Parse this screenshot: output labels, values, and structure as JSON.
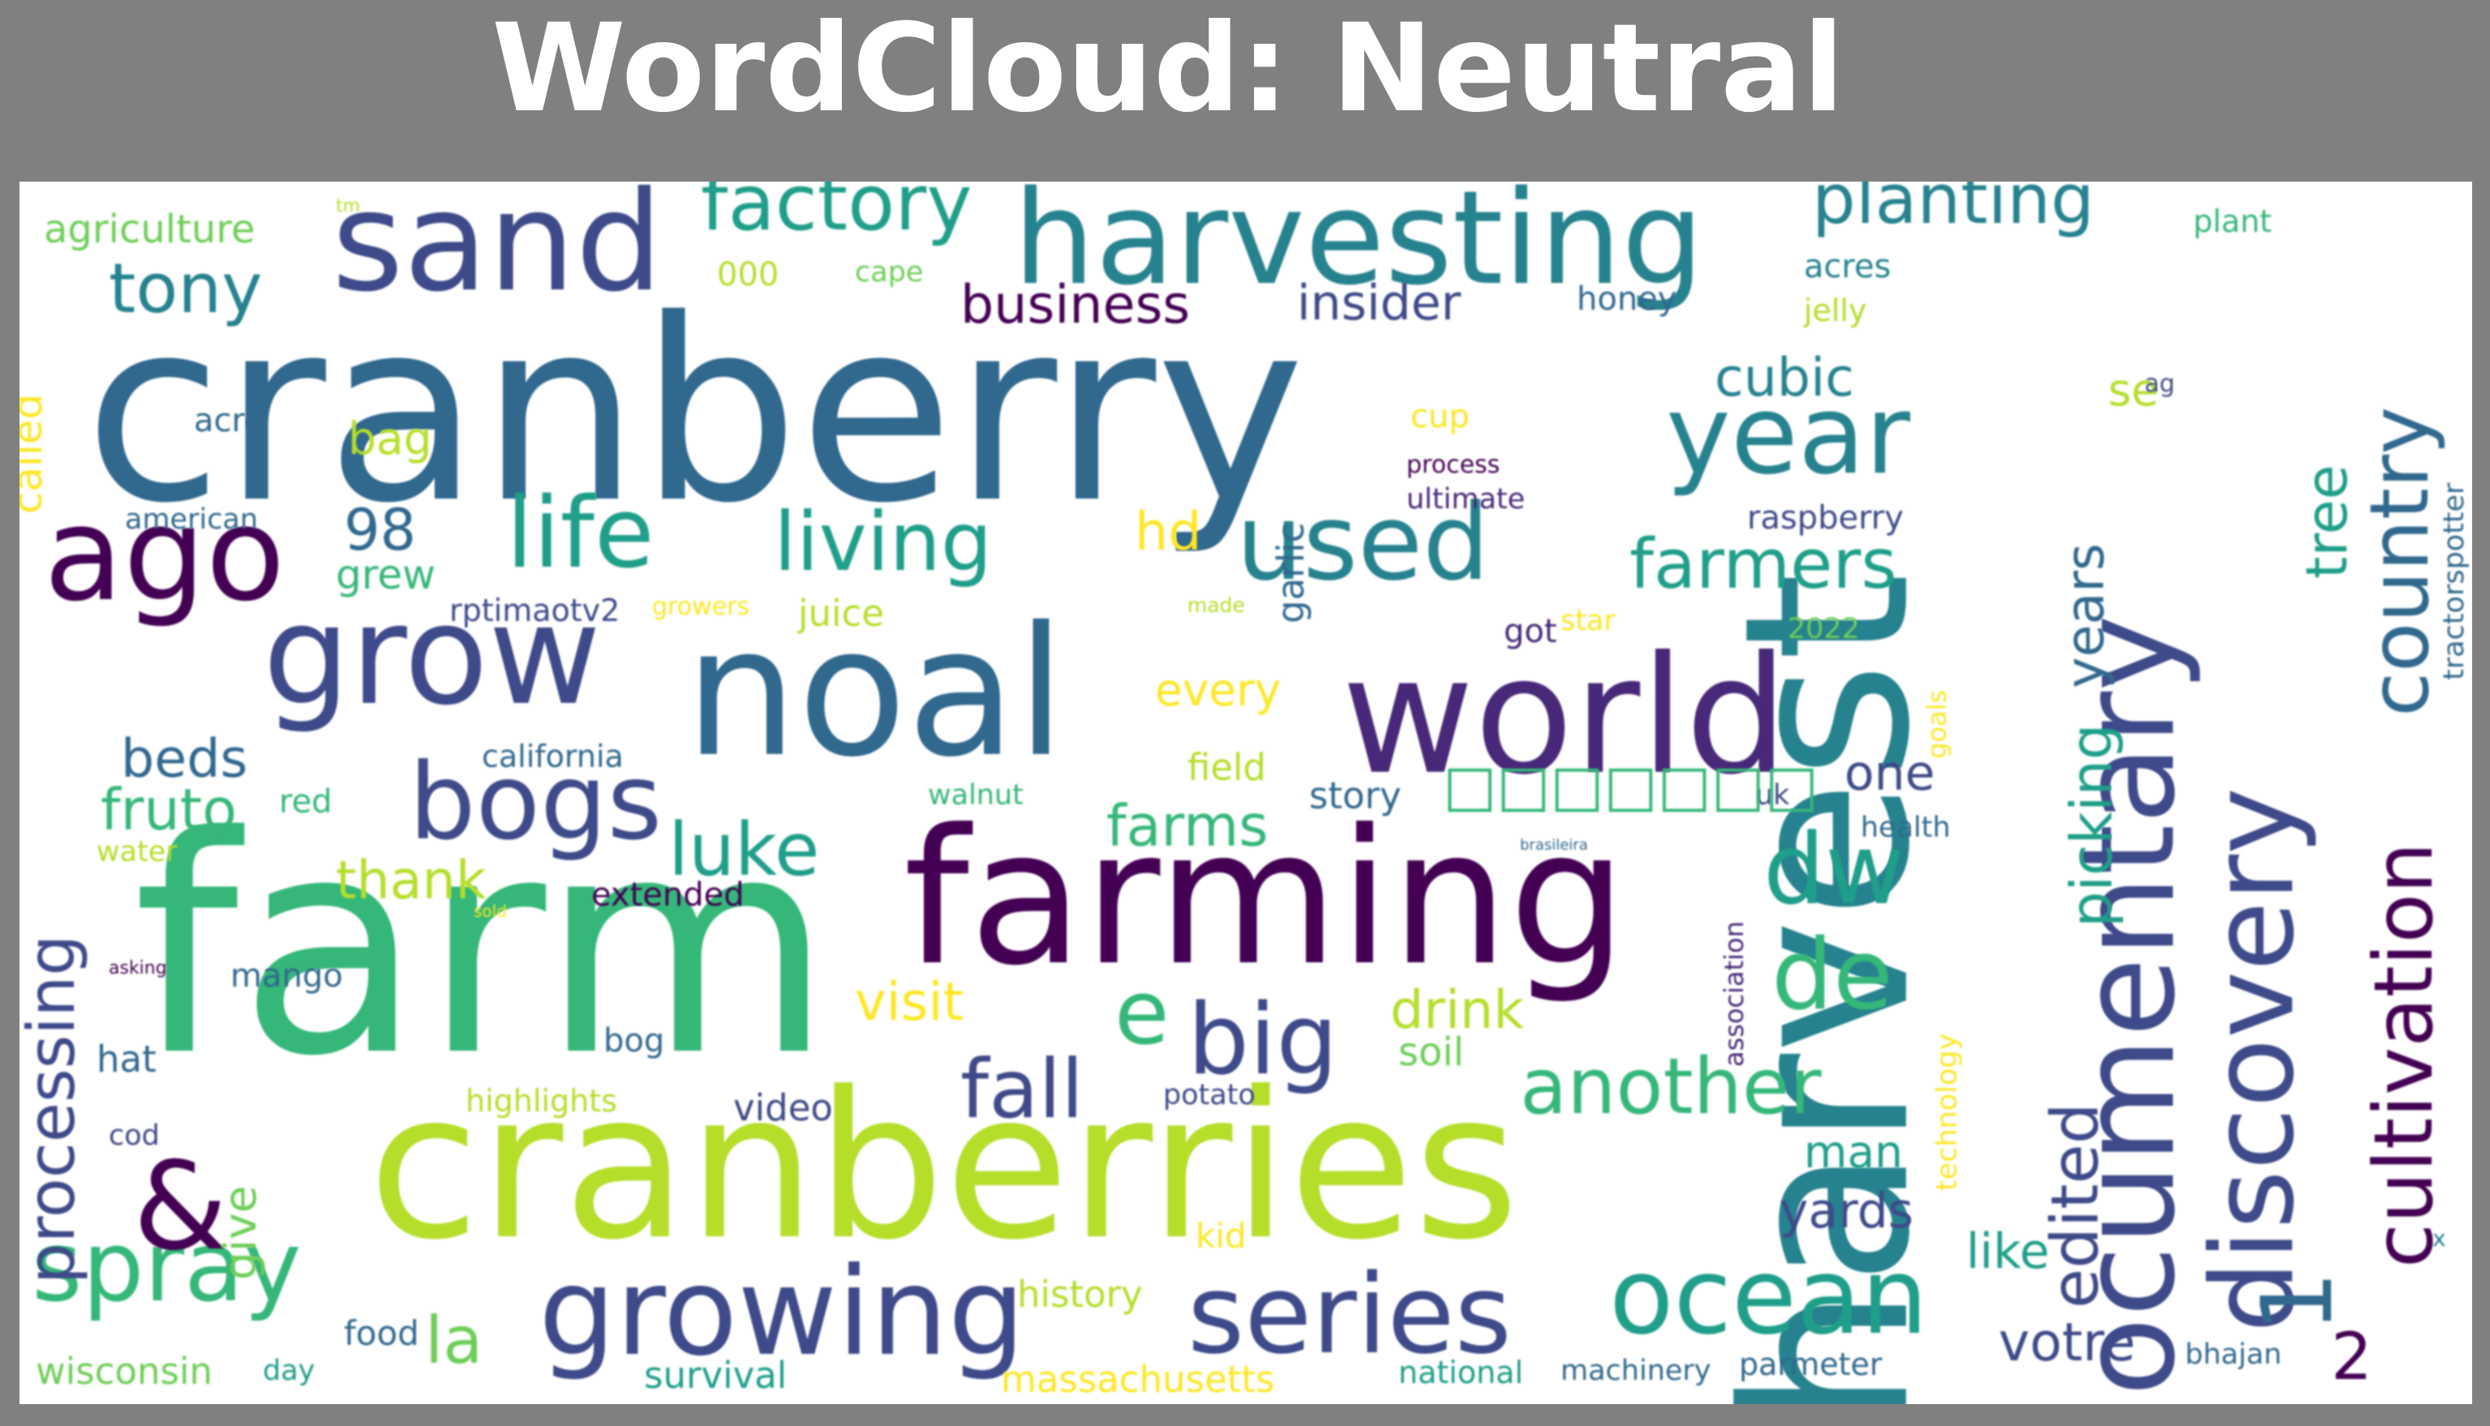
{
  "title": "WordCloud: Neutral",
  "words": [
    "cranberry",
    "farm",
    "harvest",
    "cranberries",
    "farming",
    "noal",
    "world",
    "harvesting",
    "sand",
    "grow",
    "documentary",
    "ago",
    "discovery",
    "growing",
    "series",
    "ocean",
    "year",
    "used",
    "life",
    "living",
    "bogs",
    "spray",
    "big",
    "factory",
    "planting",
    "dw",
    "de",
    "&",
    "1",
    "cultivation",
    "country",
    "tony",
    "farmers",
    "fall",
    "another",
    "e",
    "luke",
    "edited",
    "processing",
    "picking",
    "years",
    "tree",
    "insider",
    "business",
    "cubic",
    "beds",
    "fruto",
    "la",
    "thank",
    "farms",
    "visit",
    "drink",
    "hd",
    "98",
    "votre",
    "yards",
    "like",
    "man",
    "one",
    "2",
    "agriculture",
    "called",
    "bag",
    "grew",
    "acre",
    "american",
    "every",
    "field",
    "story",
    "juice",
    "red",
    "water",
    "hat",
    "mango",
    "bog",
    "soil",
    "video",
    "history",
    "kid",
    "food",
    "day",
    "survival",
    "national",
    "machinery",
    "parmeter",
    "massachusetts",
    "wisconsin",
    "give",
    "highlights",
    "extended",
    "garlic",
    "cup",
    "process",
    "ultimate",
    "raspberry",
    "honey",
    "acres",
    "jelly",
    "cape",
    "000",
    "plant",
    "tractorspotter",
    "technology",
    "association",
    "goals",
    "got",
    "star",
    "2022",
    "rptimaotv2",
    "growers",
    "california",
    "walnut",
    "potato",
    "made",
    "health",
    "uk",
    "bhajan",
    "cod",
    "se",
    "ag",
    "tm",
    "asking",
    "sold",
    "brasileira",
    "x"
  ],
  "palette": {
    "background": "#808080",
    "cloud_background": "#ffffff",
    "title_color": "#ffffff",
    "colors": [
      "#440154",
      "#482878",
      "#3e4a89",
      "#31688e",
      "#26828e",
      "#1f9e89",
      "#35b779",
      "#6ece58",
      "#b5de2b",
      "#fde725"
    ]
  },
  "placeholder_glyph": "□□□□□□□"
}
